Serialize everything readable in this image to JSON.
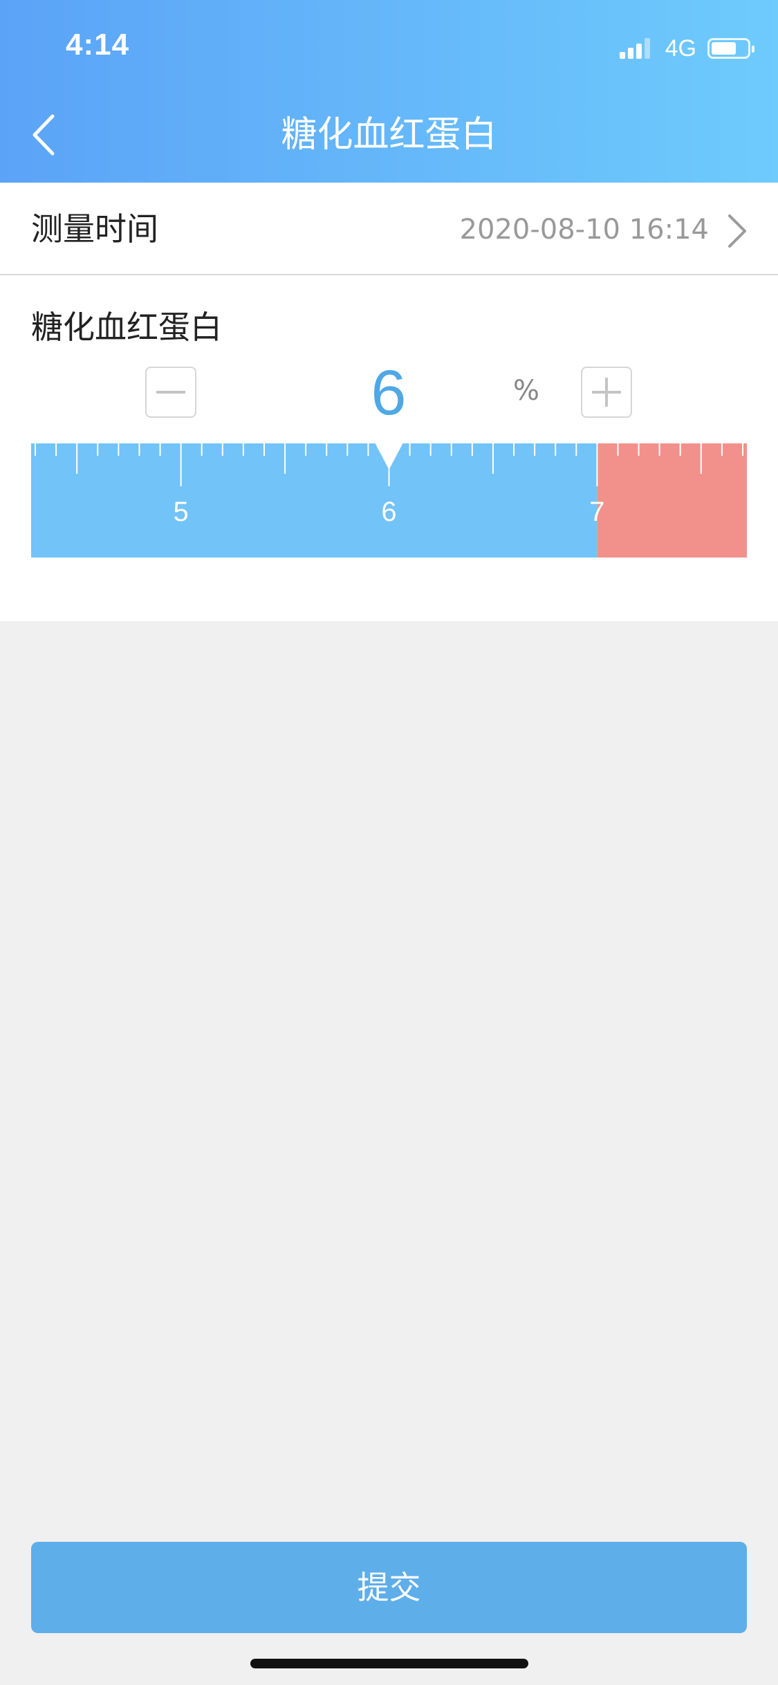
{
  "status_bar": {
    "time": "4:14",
    "network": "4G",
    "battery_level": 0.7
  },
  "header": {
    "title": "糖化血红蛋白",
    "back_icon": "chevron-left-icon"
  },
  "measure_time": {
    "label": "测量时间",
    "value": "2020-08-10 16:14",
    "icon": "chevron-right-icon"
  },
  "measurement": {
    "label": "糖化血红蛋白",
    "value": "6",
    "unit": "%",
    "minus_icon": "minus-icon",
    "plus_icon": "plus-icon"
  },
  "ruler": {
    "visible_min": 4.28,
    "visible_max": 7.72,
    "selected": 6,
    "tick_step": 0.1,
    "major_step": 0.5,
    "labels": [
      "5",
      "6",
      "7"
    ],
    "normal_color": "#72c3f7",
    "high_color": "#f2918b",
    "high_threshold": 7
  },
  "footer": {
    "submit_label": "提交"
  }
}
